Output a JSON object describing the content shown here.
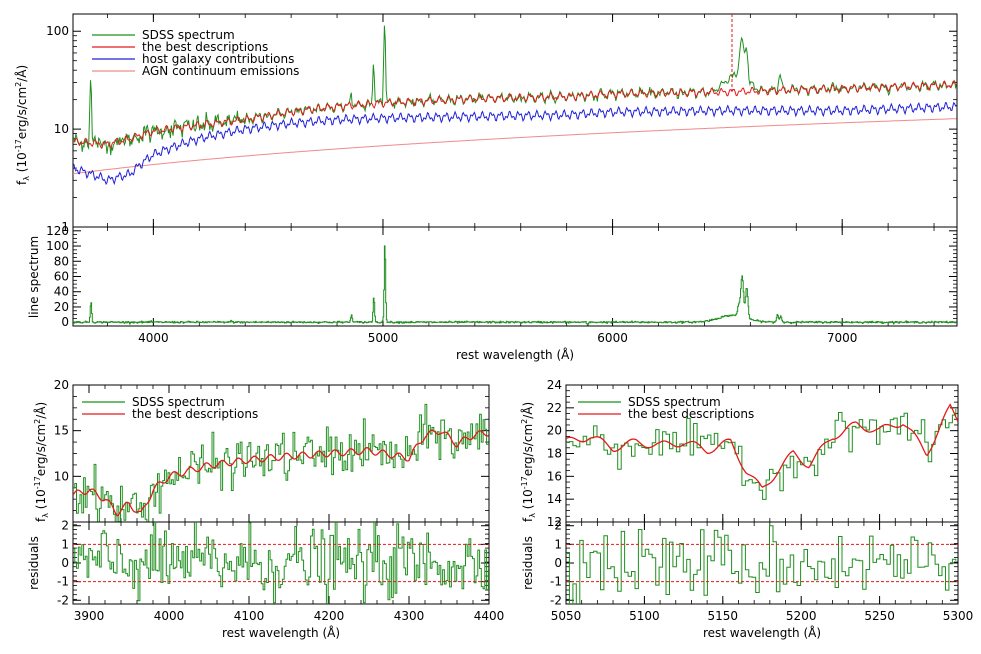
{
  "colors": {
    "sdss": "#1f8f1f",
    "best": "#e41a1a",
    "host": "#2020d8",
    "agn": "#f08a8a",
    "dashed": "#e41a1a",
    "axis": "#000000",
    "legend_blue_text": "#2020d8"
  },
  "chart_data": [
    {
      "id": "top-spectrum",
      "type": "line",
      "title": "",
      "xlabel": "",
      "ylabel": "f_λ (10^-17 erg/s/cm^2/Å)",
      "xlim": [
        3650,
        7500
      ],
      "ylim": [
        1,
        150
      ],
      "yscale": "log",
      "xticks": [
        4000,
        5000,
        6000,
        7000
      ],
      "yticks": [
        1,
        10,
        100
      ],
      "ytick_labels": [
        "1",
        "10",
        "100"
      ],
      "legend_position": "top-left",
      "dashed_vline_x": 6520,
      "series": [
        {
          "name": "SDSS spectrum",
          "color_key": "sdss"
        },
        {
          "name": "the best descriptions",
          "color_key": "best"
        },
        {
          "name": "host galaxy contributions",
          "color_key": "host"
        },
        {
          "name": "AGN continuum emissions",
          "color_key": "agn"
        }
      ],
      "agn_endpoints": {
        "x": [
          3650,
          7500
        ],
        "y": [
          3.5,
          12.8
        ]
      },
      "continuum_nodes": {
        "x": [
          3650,
          3800,
          3900,
          4000,
          4200,
          4400,
          4600,
          4800,
          5000,
          5400,
          5800,
          6000,
          6500,
          7000,
          7500
        ],
        "y": [
          7.5,
          7.0,
          8.0,
          9.5,
          11.0,
          12.5,
          15.0,
          17.0,
          18.5,
          20.5,
          21.5,
          23.0,
          24.0,
          26.0,
          28.5
        ]
      },
      "host_nodes": {
        "x": [
          3650,
          3800,
          3900,
          4000,
          4200,
          4400,
          4600,
          4800,
          5000,
          5400,
          5800,
          6000,
          6500,
          7000,
          7500
        ],
        "y": [
          4.0,
          3.0,
          3.5,
          5.5,
          8.0,
          10.0,
          11.5,
          12.5,
          13.0,
          13.5,
          14.0,
          15.0,
          15.5,
          15.5,
          17.0
        ]
      },
      "emission_lines": [
        {
          "x": 3727,
          "peak": 33,
          "width": 3
        },
        {
          "x": 4861,
          "peak": 24,
          "width": 3
        },
        {
          "x": 4959,
          "peak": 48,
          "width": 3
        },
        {
          "x": 5007,
          "peak": 120,
          "width": 3
        },
        {
          "x": 6563,
          "peak": 75,
          "width": 8
        },
        {
          "x": 6583,
          "peak": 58,
          "width": 5
        },
        {
          "x": 6730,
          "peak": 35,
          "width": 6
        }
      ]
    },
    {
      "id": "line-spectrum",
      "type": "line",
      "title": "",
      "xlabel": "rest wavelength (Å)",
      "ylabel": "line spectrum",
      "xlim": [
        3650,
        7500
      ],
      "ylim": [
        -5,
        125
      ],
      "xticks": [
        4000,
        5000,
        6000,
        7000
      ],
      "yticks": [
        0,
        20,
        40,
        60,
        80,
        100,
        120
      ],
      "series": [
        {
          "name": "",
          "color_key": "sdss"
        }
      ],
      "peaks": [
        {
          "x": 3727,
          "y": 27,
          "width": 3
        },
        {
          "x": 4340,
          "y": 2,
          "width": 3
        },
        {
          "x": 4861,
          "y": 10,
          "width": 3
        },
        {
          "x": 4959,
          "y": 33,
          "width": 3
        },
        {
          "x": 5007,
          "y": 105,
          "width": 3
        },
        {
          "x": 6563,
          "y": 54,
          "width": 6
        },
        {
          "x": 6548,
          "y": 14,
          "width": 5
        },
        {
          "x": 6583,
          "y": 40,
          "width": 5
        },
        {
          "x": 6520,
          "y": 9,
          "width": 60
        },
        {
          "x": 6717,
          "y": 10,
          "width": 4
        },
        {
          "x": 6731,
          "y": 8,
          "width": 4
        }
      ]
    },
    {
      "id": "zoom-left",
      "type": "line",
      "title": "",
      "xlabel": "",
      "ylabel": "f_λ (10^-17 erg/s/cm^2/Å)",
      "xlim": [
        3880,
        4400
      ],
      "ylim": [
        5,
        20
      ],
      "xticks": [
        3900,
        4000,
        4100,
        4200,
        4300,
        4400
      ],
      "yticks": [
        10,
        15,
        20
      ],
      "legend_position": "top-left",
      "series": [
        {
          "name": "SDSS spectrum",
          "color_key": "sdss"
        },
        {
          "name": "the best descriptions",
          "color_key": "best"
        }
      ],
      "model_nodes": {
        "x": [
          3880,
          3900,
          3920,
          3935,
          3950,
          3965,
          3980,
          4000,
          4050,
          4100,
          4150,
          4200,
          4250,
          4300,
          4320,
          4340,
          4360,
          4380,
          4400
        ],
        "y": [
          8.0,
          8.5,
          7.5,
          6.0,
          7.0,
          5.8,
          8.5,
          10.0,
          11.2,
          11.8,
          12.2,
          12.5,
          12.8,
          12.0,
          14.5,
          15.0,
          13.5,
          14.5,
          14.8
        ]
      }
    },
    {
      "id": "resid-left",
      "type": "line",
      "title": "",
      "xlabel": "rest wavelength (Å)",
      "ylabel": "residuals",
      "xlim": [
        3880,
        4400
      ],
      "ylim": [
        -2.2,
        2.2
      ],
      "xticks": [
        3900,
        4000,
        4100,
        4200,
        4300,
        4400
      ],
      "yticks": [
        -2,
        -1,
        0,
        1,
        2
      ],
      "dashed_hlines": [
        1,
        -1
      ]
    },
    {
      "id": "zoom-right",
      "type": "line",
      "title": "",
      "xlabel": "",
      "ylabel": "f_λ (10^-17 erg/s/cm^2/Å)",
      "xlim": [
        5050,
        5300
      ],
      "ylim": [
        12,
        24
      ],
      "xticks": [
        5050,
        5100,
        5150,
        5200,
        5250,
        5300
      ],
      "yticks": [
        12,
        14,
        16,
        18,
        20,
        22,
        24
      ],
      "legend_position": "top-left",
      "series": [
        {
          "name": "SDSS spectrum",
          "color_key": "sdss"
        },
        {
          "name": "the best descriptions",
          "color_key": "best"
        }
      ],
      "model_nodes": {
        "x": [
          5050,
          5065,
          5080,
          5095,
          5110,
          5125,
          5140,
          5155,
          5165,
          5175,
          5185,
          5195,
          5205,
          5220,
          5235,
          5250,
          5265,
          5280,
          5295,
          5300
        ],
        "y": [
          19.0,
          19.5,
          18.5,
          19.0,
          18.7,
          19.0,
          18.3,
          19.0,
          16.5,
          14.8,
          16.5,
          18.0,
          17.0,
          19.5,
          20.5,
          20.0,
          20.8,
          18.0,
          22.0,
          21.0
        ]
      }
    },
    {
      "id": "resid-right",
      "type": "line",
      "title": "",
      "xlabel": "rest wavelength (Å)",
      "ylabel": "residuals",
      "xlim": [
        5050,
        5300
      ],
      "ylim": [
        -2.2,
        2.2
      ],
      "xticks": [
        5050,
        5100,
        5150,
        5200,
        5250,
        5300
      ],
      "yticks": [
        -2,
        -1,
        0,
        1,
        2
      ],
      "dashed_hlines": [
        1,
        -1
      ]
    }
  ]
}
